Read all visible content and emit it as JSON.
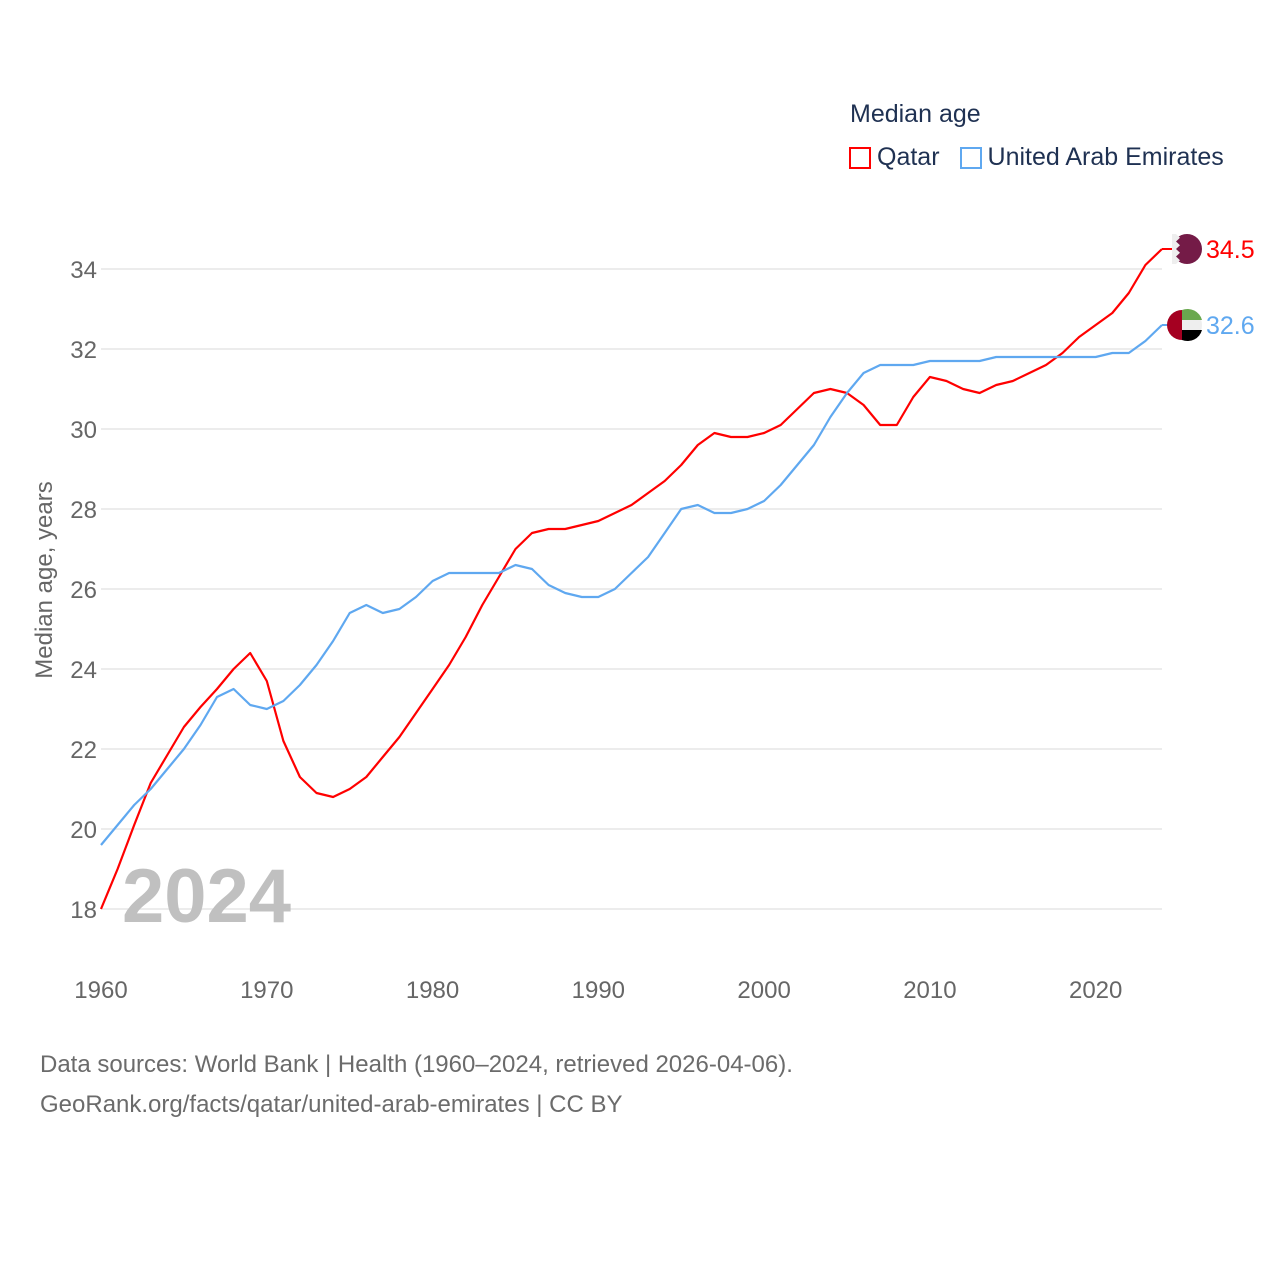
{
  "legend": {
    "title": "Median age"
  },
  "footer": {
    "line1": "Data sources: World Bank | Health (1960–2024, retrieved 2026-04-06).",
    "line2": "GeoRank.org/facts/qatar/united-arab-emirates | CC BY"
  },
  "chart_data": {
    "type": "line",
    "title": "Median age",
    "xlabel": "",
    "ylabel": "Median age, years",
    "year_label": "2024",
    "xlim": [
      1960,
      2024
    ],
    "ylim": [
      17,
      35
    ],
    "xticks": [
      1960,
      1970,
      1980,
      1990,
      2000,
      2010,
      2020
    ],
    "yticks": [
      18,
      20,
      22,
      24,
      26,
      28,
      30,
      32,
      34
    ],
    "grid": true,
    "legend_position": "top-right",
    "x": [
      1960,
      1961,
      1962,
      1963,
      1964,
      1965,
      1966,
      1967,
      1968,
      1969,
      1970,
      1971,
      1972,
      1973,
      1974,
      1975,
      1976,
      1977,
      1978,
      1979,
      1980,
      1981,
      1982,
      1983,
      1984,
      1985,
      1986,
      1987,
      1988,
      1989,
      1990,
      1991,
      1992,
      1993,
      1994,
      1995,
      1996,
      1997,
      1998,
      1999,
      2000,
      2001,
      2002,
      2003,
      2004,
      2005,
      2006,
      2007,
      2008,
      2009,
      2010,
      2011,
      2012,
      2013,
      2014,
      2015,
      2016,
      2017,
      2018,
      2019,
      2020,
      2021,
      2022,
      2023,
      2024
    ],
    "series": [
      {
        "name": "Qatar",
        "color": "#ff0000",
        "flag": "qatar-flag",
        "end_label": "34.5",
        "values": [
          18.0,
          19.0,
          20.1,
          21.15,
          21.85,
          22.55,
          23.05,
          23.5,
          24.0,
          24.4,
          23.7,
          22.2,
          21.3,
          20.9,
          20.8,
          21.0,
          21.3,
          21.8,
          22.3,
          22.9,
          23.5,
          24.1,
          24.8,
          25.6,
          26.3,
          27.0,
          27.4,
          27.5,
          27.5,
          27.6,
          27.7,
          27.9,
          28.1,
          28.4,
          28.7,
          29.1,
          29.6,
          29.9,
          29.8,
          29.8,
          29.9,
          30.1,
          30.5,
          30.9,
          31.0,
          30.9,
          30.6,
          30.1,
          30.1,
          30.8,
          31.3,
          31.2,
          31.0,
          30.9,
          31.1,
          31.2,
          31.4,
          31.6,
          31.9,
          32.3,
          32.6,
          32.9,
          33.4,
          34.1,
          34.5
        ]
      },
      {
        "name": "United Arab Emirates",
        "color": "#5fa8f0",
        "flag": "uae-flag",
        "end_label": "32.6",
        "values": [
          19.6,
          20.1,
          20.6,
          21.0,
          21.5,
          22.0,
          22.6,
          23.3,
          23.5,
          23.1,
          23.0,
          23.2,
          23.6,
          24.1,
          24.7,
          25.4,
          25.6,
          25.4,
          25.5,
          25.8,
          26.2,
          26.4,
          26.4,
          26.4,
          26.4,
          26.6,
          26.5,
          26.1,
          25.9,
          25.8,
          25.8,
          26.0,
          26.4,
          26.8,
          27.4,
          28.0,
          28.1,
          27.9,
          27.9,
          28.0,
          28.2,
          28.6,
          29.1,
          29.6,
          30.3,
          30.9,
          31.4,
          31.6,
          31.6,
          31.6,
          31.7,
          31.7,
          31.7,
          31.7,
          31.8,
          31.8,
          31.8,
          31.8,
          31.8,
          31.8,
          31.8,
          31.9,
          31.9,
          32.2,
          32.6
        ]
      }
    ]
  }
}
